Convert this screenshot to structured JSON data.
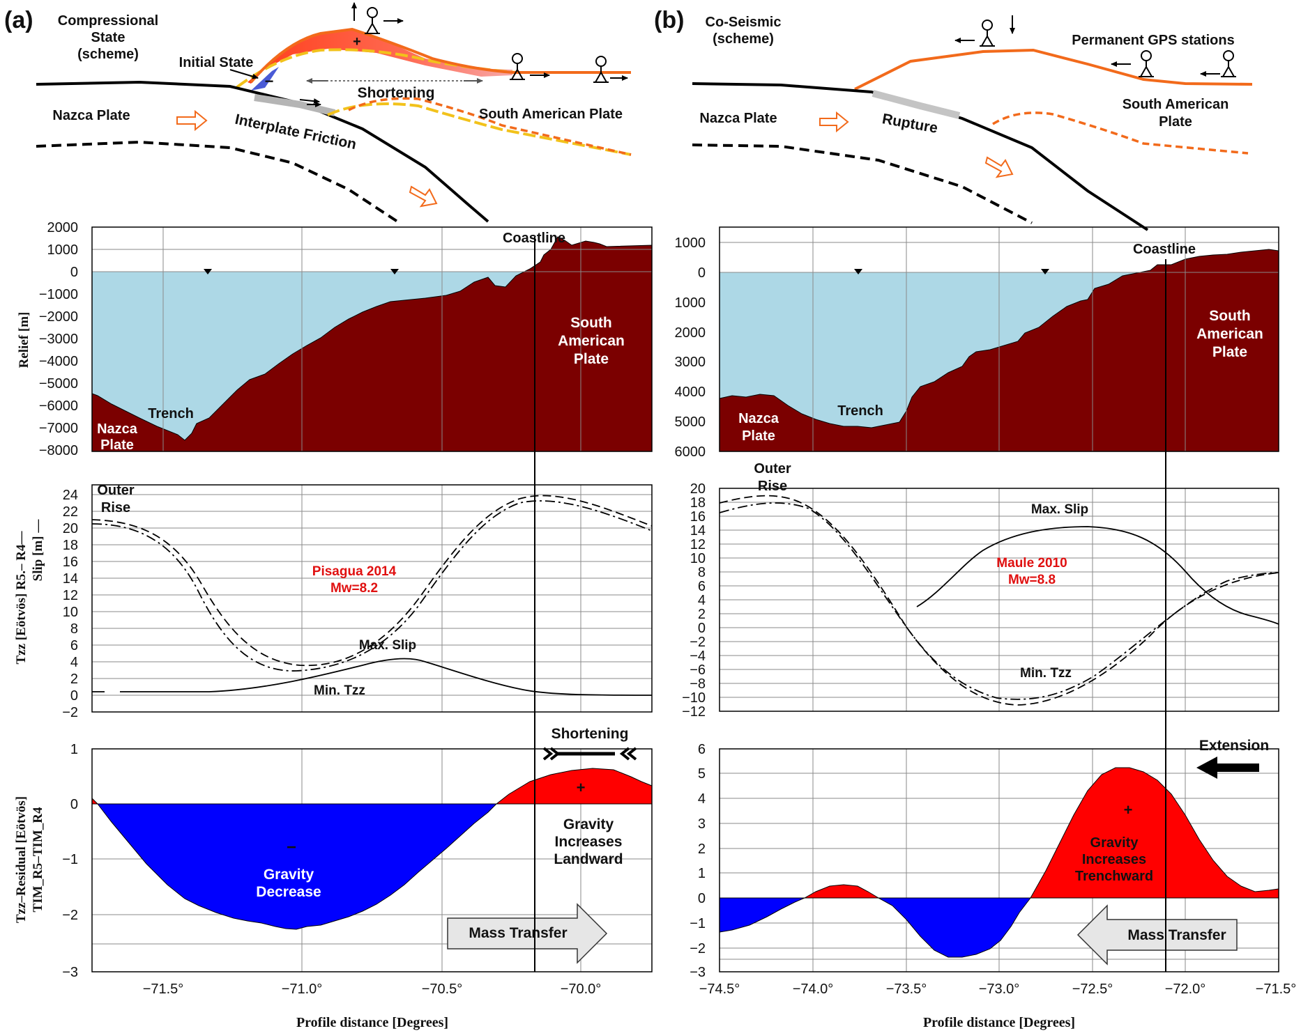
{
  "panels": {
    "a": {
      "letter": "(a)",
      "scheme_title": [
        "Compressional",
        "State",
        "(scheme)"
      ],
      "initial_state": "Initial State",
      "shortening": "Shortening",
      "nazca_plate": "Nazca Plate",
      "south_american_plate": "South American Plate",
      "interplate_friction": "Interplate Friction",
      "minus": "−",
      "plus": "+",
      "relief_ylabel": "Relief [m]",
      "relief_ticks": [
        "2000",
        "1000",
        "0",
        "−1000",
        "−2000",
        "−3000",
        "−4000",
        "−5000",
        "−6000",
        "−7000",
        "−8000"
      ],
      "coastline": "Coastline",
      "relief_sa_plate": [
        "South",
        "American",
        "Plate"
      ],
      "trench": "Trench",
      "relief_nazca": [
        "Nazca",
        "Plate"
      ],
      "tzz_ylabel_1": "Tzz [Eötvös]  R5.–  R4––",
      "tzz_ylabel_2": "Slip [m] —",
      "tzz_ticks": [
        "24",
        "22",
        "20",
        "18",
        "16",
        "14",
        "12",
        "10",
        "8",
        "6",
        "4",
        "2",
        "0",
        "−2"
      ],
      "outer_rise": [
        "Outer",
        "Rise"
      ],
      "event": [
        "Pisagua 2014",
        "Mw=8.2"
      ],
      "max_slip": "Max. Slip",
      "min_tzz": "Min. Tzz",
      "resid_ylabel_1": "Tzz–Residual [Eötvös]",
      "resid_ylabel_2": "TIM_R5–TIM_R4",
      "resid_ticks": [
        "1",
        "0",
        "−1",
        "−2",
        "−3"
      ],
      "strain_label": "Shortening",
      "gravity_pos": [
        "Gravity",
        "Increases",
        "Landward"
      ],
      "gravity_neg": [
        "Gravity",
        "Decrease"
      ],
      "mass_transfer": "Mass Transfer",
      "x_ticks": [
        "−71.5°",
        "−71.0°",
        "−70.5°",
        "−70.0°"
      ],
      "xlabel": "Profile distance [Degrees]"
    },
    "b": {
      "letter": "(b)",
      "scheme_title": [
        "Co-Seismic",
        "(scheme)"
      ],
      "permanent_gps": "Permanent GPS stations",
      "nazca_plate": "Nazca Plate",
      "rupture": "Rupture",
      "south_american_plate": [
        "South American",
        "Plate"
      ],
      "relief_ticks": [
        "1000",
        "0",
        "1000",
        "2000",
        "3000",
        "4000",
        "5000",
        "6000"
      ],
      "coastline": "Coastline",
      "relief_sa_plate": [
        "South",
        "American",
        "Plate"
      ],
      "trench": "Trench",
      "relief_nazca": [
        "Nazca",
        "Plate"
      ],
      "tzz_ticks": [
        "20",
        "18",
        "16",
        "14",
        "12",
        "10",
        "8",
        "6",
        "4",
        "2",
        "0",
        "−2",
        "−4",
        "−6",
        "−8",
        "−10",
        "−12"
      ],
      "outer_rise": [
        "Outer",
        "Rise"
      ],
      "event": [
        "Maule 2010",
        "Mw=8.8"
      ],
      "max_slip": "Max. Slip",
      "min_tzz": "Min. Tzz",
      "resid_ticks": [
        "6",
        "5",
        "4",
        "3",
        "2",
        "1",
        "0",
        "−1",
        "−2",
        "−3"
      ],
      "strain_label": "Extension",
      "gravity_pos": [
        "Gravity",
        "Increases",
        "Trenchward"
      ],
      "mass_transfer": "Mass Transfer",
      "plus": "+",
      "x_ticks": [
        "−74.5°",
        "−74.0°",
        "−73.5°",
        "−73.0°",
        "−72.5°",
        "−72.0°",
        "−71.5°"
      ],
      "xlabel": "Profile distance [Degrees]"
    }
  },
  "colors": {
    "sea": "#add8e6",
    "crust": "#7b0000",
    "positive": "#ff0000",
    "negative": "#0000ff",
    "surface_orange": "#f26a1b",
    "initial_yellow": "#f2c21b",
    "arrow_gray": "#e6e6e6",
    "event_red": "#e01010"
  }
}
